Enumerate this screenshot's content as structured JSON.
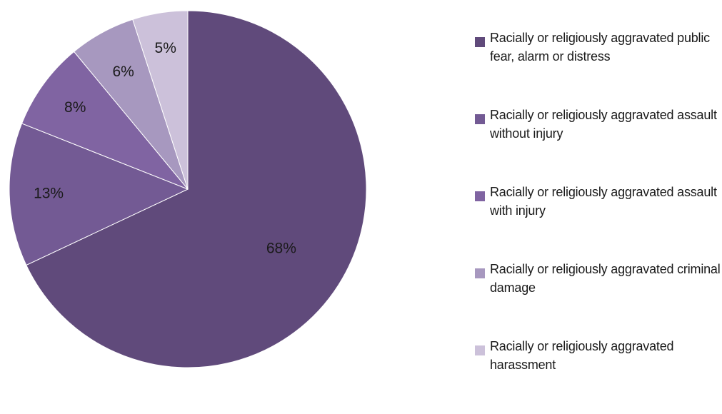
{
  "chart_data": {
    "type": "pie",
    "title": "",
    "legend_position": "right",
    "categories": [
      "Racially or religiously aggravated public fear, alarm or distress",
      "Racially or religiously aggravated assault without  injury",
      "Racially or religiously aggravated assault with injury",
      "Racially or religiously aggravated criminal damage",
      "Racially or religiously aggravated harassment"
    ],
    "values": [
      68,
      13,
      8,
      6,
      5
    ],
    "labels": [
      "68%",
      "13%",
      "8%",
      "6%",
      "5%"
    ],
    "colors": [
      "#604a7b",
      "#735a94",
      "#8064a2",
      "#a798bf",
      "#ccc1da"
    ],
    "start_angle_deg": 0,
    "direction": "clockwise"
  }
}
